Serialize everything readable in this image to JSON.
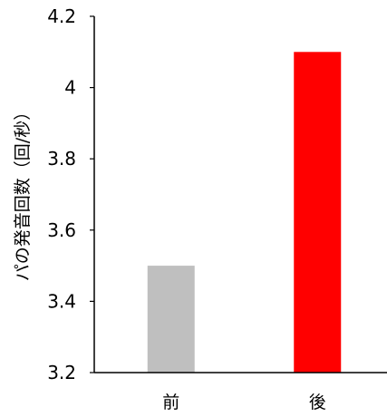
{
  "chart_data": {
    "type": "bar",
    "categories": [
      "前",
      "後"
    ],
    "values": [
      3.5,
      4.1
    ],
    "bar_colors": [
      "#bfbfbf",
      "#ff0000"
    ],
    "title": "",
    "xlabel": "",
    "ylabel": "パの発音回数（回/秒）",
    "ylim": [
      3.2,
      4.2
    ],
    "yticks": [
      3.2,
      3.4,
      3.6,
      3.8,
      4.0,
      4.2
    ],
    "ytick_labels": [
      "3.2",
      "3.4",
      "3.6",
      "3.8",
      "4",
      "4.2"
    ],
    "grid": false,
    "legend": "none"
  }
}
